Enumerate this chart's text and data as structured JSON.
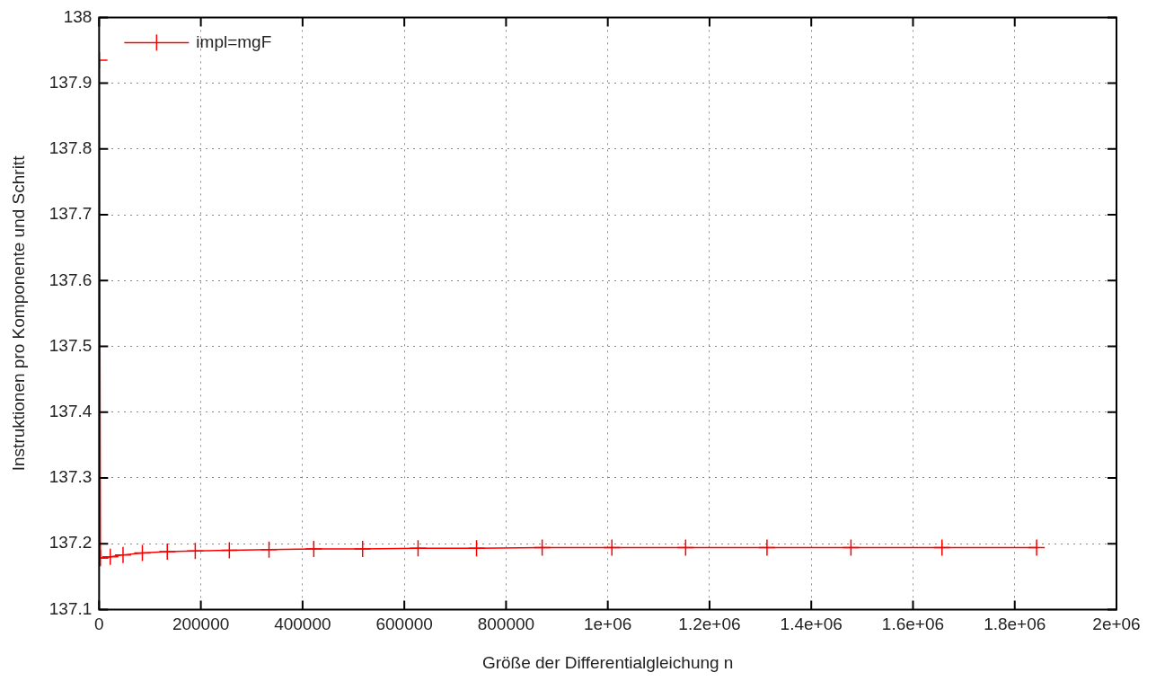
{
  "chart_data": {
    "type": "line",
    "xlabel": "Größe der Differentialgleichung n",
    "ylabel": "Instruktionen pro Komponente und Schritt",
    "x": [
      500,
      2500,
      22000,
      47000,
      85000,
      134000,
      189000,
      256000,
      334000,
      422000,
      518000,
      627000,
      742000,
      871000,
      1008000,
      1153000,
      1313000,
      1478000,
      1657000,
      1843000
    ],
    "series": [
      {
        "name": "impl=mgF",
        "color": "#ff0000",
        "values": [
          137.935,
          137.178,
          137.18,
          137.183,
          137.186,
          137.188,
          137.189,
          137.19,
          137.191,
          137.192,
          137.192,
          137.193,
          137.193,
          137.194,
          137.194,
          137.194,
          137.194,
          137.194,
          137.194,
          137.194
        ]
      }
    ],
    "xlim": [
      0,
      2000000
    ],
    "xticks": [
      0,
      200000,
      400000,
      600000,
      800000,
      {
        "value": 1000000,
        "label": "1e+06"
      },
      {
        "value": 1200000,
        "label": "1.2e+06"
      },
      {
        "value": 1400000,
        "label": "1.4e+06"
      },
      {
        "value": 1600000,
        "label": "1.6e+06"
      },
      {
        "value": 1800000,
        "label": "1.8e+06"
      },
      {
        "value": 2000000,
        "label": "2e+06"
      }
    ],
    "ylim": [
      137.1,
      138
    ],
    "yticks": [
      137.1,
      137.2,
      137.3,
      137.4,
      137.5,
      137.6,
      137.7,
      137.8,
      137.9,
      138
    ],
    "grid": true,
    "legend": "top left",
    "marker": "cross",
    "line_style": "solid"
  }
}
